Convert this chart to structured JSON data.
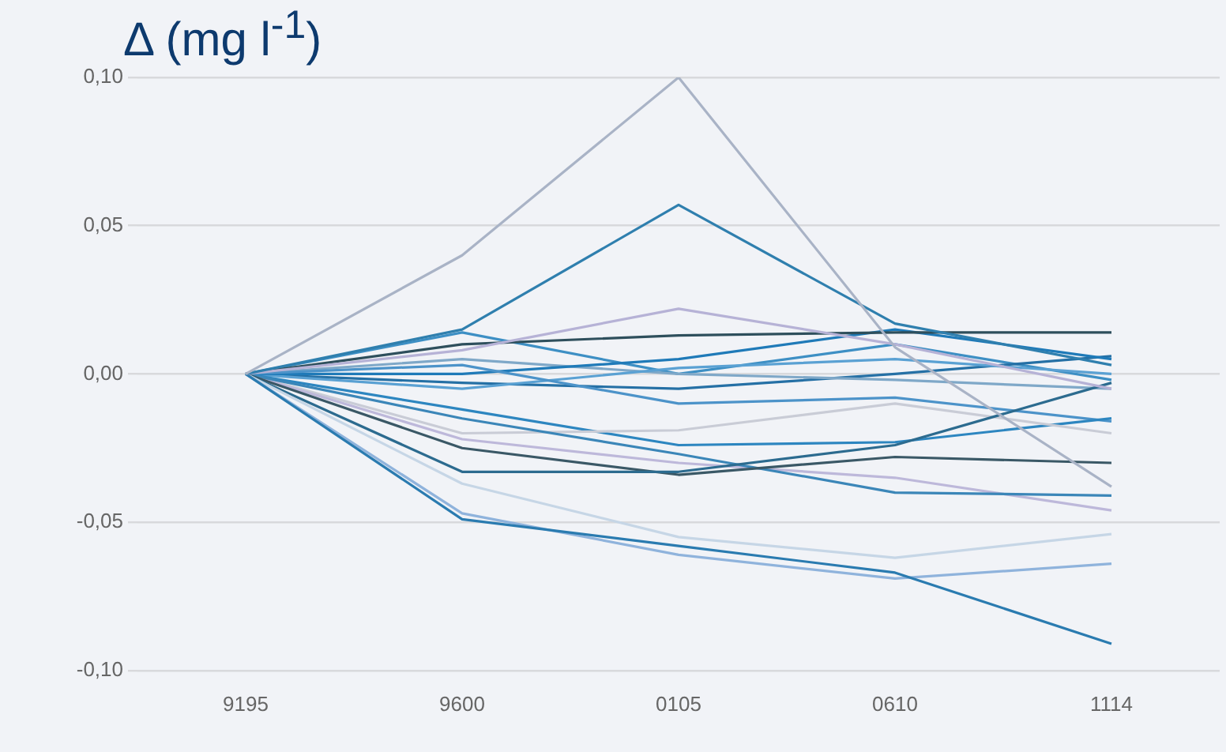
{
  "chart_data": {
    "type": "line",
    "ylabel": "Δ (mg l$^{-1}$)",
    "categories": [
      "9195",
      "9600",
      "0105",
      "0610",
      "1114"
    ],
    "ylim": [
      -0.1,
      0.1
    ],
    "yticks": [
      {
        "value": -0.1,
        "label": "-0,10"
      },
      {
        "value": -0.05,
        "label": "-0,05"
      },
      {
        "value": 0,
        "label": "0,00"
      },
      {
        "value": 0.05,
        "label": "0,05"
      },
      {
        "value": 0.1,
        "label": "0,10"
      }
    ],
    "grid": "y",
    "legend": false,
    "marker": "none",
    "line_style": "solid",
    "series": [
      {
        "color": "#a9b3c6",
        "values": [
          0,
          0.04,
          0.1,
          0.009,
          -0.038
        ]
      },
      {
        "color": "#2f7fae",
        "values": [
          0,
          0.015,
          0.057,
          0.017,
          0.003
        ]
      },
      {
        "color": "#b6b2d6",
        "values": [
          0,
          0.008,
          0.022,
          0.01,
          -0.005
        ]
      },
      {
        "color": "#2e4f5c",
        "values": [
          0,
          0.01,
          0.013,
          0.014,
          0.014
        ]
      },
      {
        "color": "#2a7bb0",
        "values": [
          0,
          -0.049,
          -0.058,
          -0.067,
          -0.091
        ]
      },
      {
        "color": "#8fb3dc",
        "values": [
          0,
          -0.047,
          -0.061,
          -0.069,
          -0.064
        ]
      },
      {
        "color": "#c6d6e6",
        "values": [
          0,
          -0.037,
          -0.055,
          -0.062,
          -0.054
        ]
      },
      {
        "color": "#2c6b8f",
        "values": [
          0,
          -0.033,
          -0.033,
          -0.024,
          -0.003
        ]
      },
      {
        "color": "#3a5866",
        "values": [
          0,
          -0.025,
          -0.034,
          -0.028,
          -0.03
        ]
      },
      {
        "color": "#3b86b8",
        "values": [
          0,
          -0.015,
          -0.027,
          -0.04,
          -0.041
        ]
      },
      {
        "color": "#bdb8da",
        "values": [
          0,
          -0.022,
          -0.03,
          -0.035,
          -0.046
        ]
      },
      {
        "color": "#c9ccd6",
        "values": [
          0,
          -0.02,
          -0.019,
          -0.01,
          -0.02
        ]
      },
      {
        "color": "#2d86c0",
        "values": [
          0,
          -0.012,
          -0.024,
          -0.023,
          -0.015
        ]
      },
      {
        "color": "#4c93c9",
        "values": [
          0,
          0.003,
          -0.01,
          -0.008,
          -0.016
        ]
      },
      {
        "color": "#1f7ab8",
        "values": [
          0,
          0.0,
          0.005,
          0.015,
          0.005
        ]
      },
      {
        "color": "#5aa1d3",
        "values": [
          0,
          -0.005,
          0.002,
          0.005,
          0.0
        ]
      },
      {
        "color": "#7fa8c8",
        "values": [
          0,
          0.005,
          0.0,
          -0.002,
          -0.005
        ]
      },
      {
        "color": "#2570a5",
        "values": [
          0,
          -0.003,
          -0.005,
          0.0,
          0.006
        ]
      },
      {
        "color": "#3d8fc4",
        "values": [
          0,
          0.014,
          0.0,
          0.01,
          -0.002
        ]
      }
    ]
  }
}
